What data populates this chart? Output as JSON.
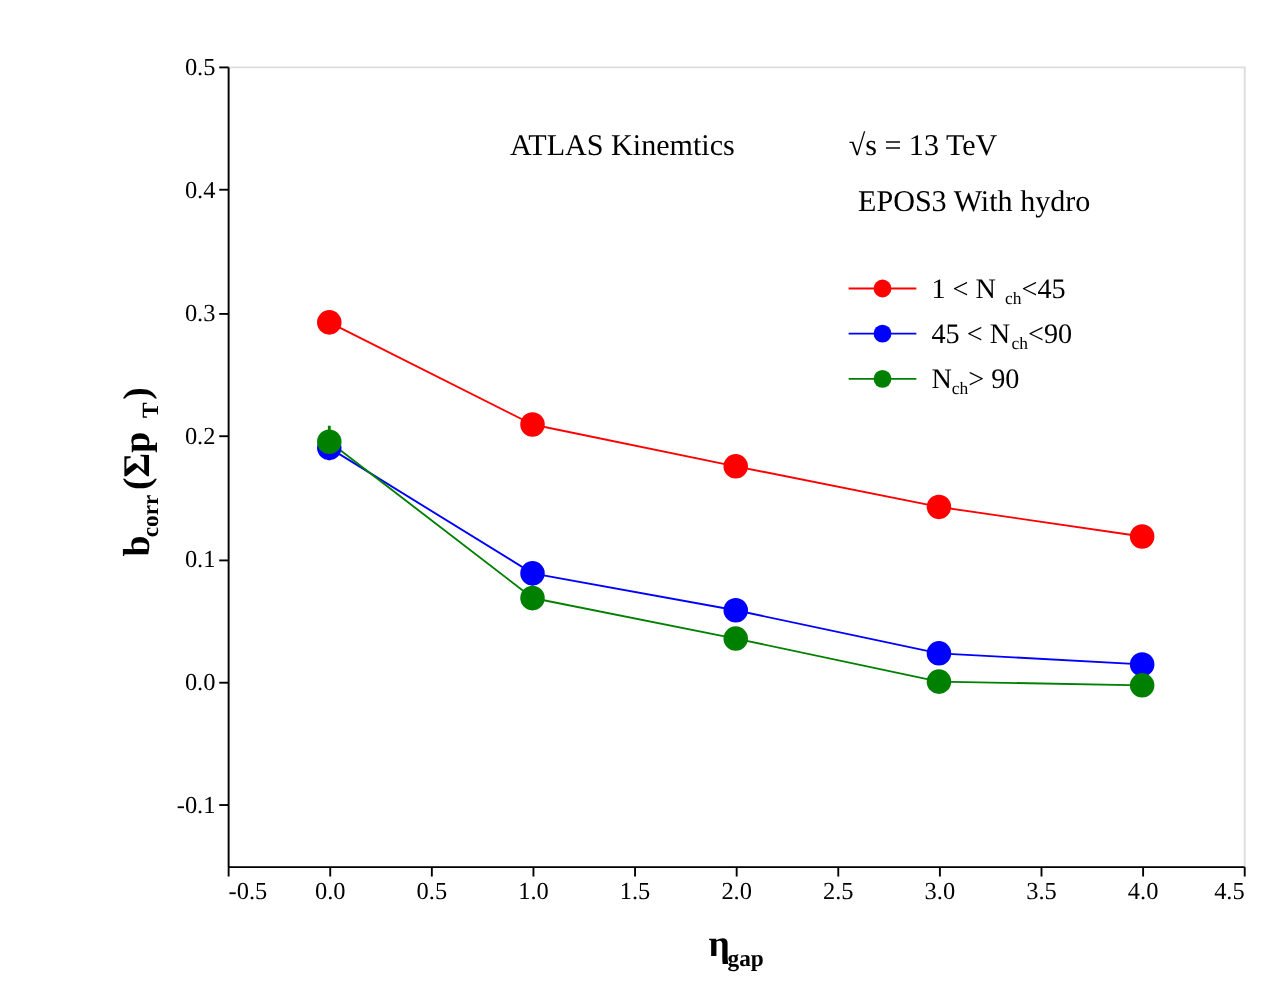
{
  "chart_data": {
    "type": "line",
    "xlabel": "η$_{gap}$",
    "ylabel": "b$_{corr}$(Σp$_{T}$)",
    "annotations": [
      "ATLAS Kinemtics",
      "√s = 13 TeV",
      "EPOS3 With hydro"
    ],
    "x": [
      0,
      1,
      2,
      3,
      4
    ],
    "series": [
      {
        "name": "1  < N$_{ch}$<45",
        "color": "#ff0000",
        "values": [
          0.292,
          0.209,
          0.175,
          0.142,
          0.118
        ]
      },
      {
        "name": "45 < N$_{ch}$<90",
        "color": "#0000ff",
        "values": [
          0.19,
          0.088,
          0.058,
          0.023,
          0.014
        ],
        "errors": [
          0.01,
          null,
          null,
          null,
          null
        ]
      },
      {
        "name": "N$_{ch}$> 90",
        "color": "#008000",
        "values": [
          0.195,
          0.068,
          0.035,
          0.0,
          -0.003
        ],
        "errors": [
          0.013,
          0.01,
          0.008,
          0.008,
          0.007
        ]
      }
    ],
    "xlim": [
      -0.5,
      4.5
    ],
    "xticks": [
      -0.5,
      {
        "value": 0,
        "label": "0.0"
      },
      0.5,
      {
        "value": 1,
        "label": "1.0"
      },
      1.5,
      {
        "value": 2,
        "label": "2.0"
      },
      2.5,
      {
        "value": 3,
        "label": "3.0"
      },
      3.5,
      {
        "value": 4,
        "label": "4.0"
      },
      4.5
    ],
    "ylim": [
      -0.15,
      0.5
    ],
    "yticks": [
      -0.1,
      {
        "value": 0,
        "label": "0.0"
      },
      0.1,
      0.2,
      0.3,
      0.4,
      0.5
    ],
    "grid": false,
    "legend": "top right",
    "marker": "circle",
    "line_style": "solid"
  }
}
